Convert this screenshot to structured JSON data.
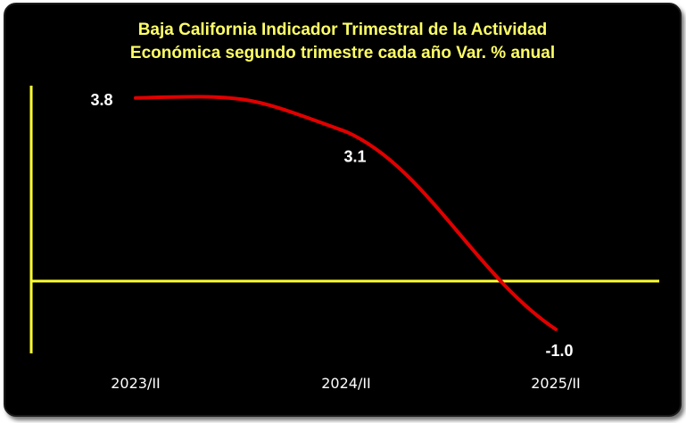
{
  "chart_data": {
    "type": "line",
    "title": "Baja California Indicador Trimestral de la Actividad Económica segundo trimestre cada año Var. % anual",
    "title_lines": [
      "Baja California Indicador Trimestral de la Actividad",
      "Económica segundo trimestre cada año Var. % anual"
    ],
    "categories": [
      "2023/II",
      "2024/II",
      "2025/II"
    ],
    "series": [
      {
        "name": "Var. % anual",
        "values": [
          3.8,
          3.1,
          -1.0
        ],
        "data_labels": [
          "3.8",
          "3.1",
          "-1.0"
        ]
      }
    ],
    "xlabel": "",
    "ylabel": "",
    "ylim": [
      -1.5,
      4.0
    ],
    "grid": false,
    "legend": "none",
    "colors": {
      "background": "#000000",
      "axis": "#ffff33",
      "line": "#e00000",
      "title": "#ffff66",
      "labels": "#ffffff"
    }
  }
}
